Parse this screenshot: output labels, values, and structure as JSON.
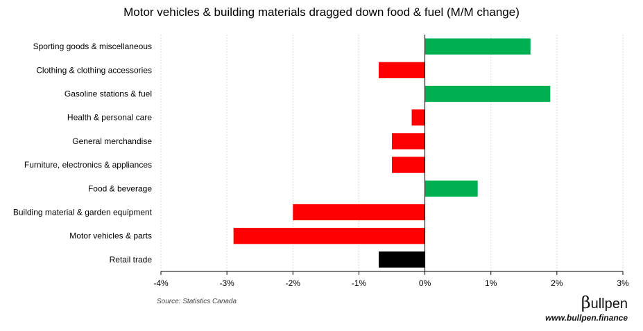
{
  "title": "Motor vehicles & building materials dragged down food & fuel (M/M change)",
  "source": "Source: Statistics Canada",
  "brand": {
    "symbol": "β",
    "name": "ullpen",
    "website": "www.bullpen.finance"
  },
  "colors": {
    "positive": "#00b050",
    "negative": "#ff0000",
    "total": "#000000",
    "grid": "#d9d9d9"
  },
  "chart_data": {
    "type": "bar",
    "orientation": "horizontal",
    "title": "Motor vehicles & building materials dragged down food & fuel (M/M change)",
    "xlabel": "",
    "ylabel": "",
    "xlim": [
      -4,
      3
    ],
    "xticks": [
      -4,
      -3,
      -2,
      -1,
      0,
      1,
      2,
      3
    ],
    "xtick_labels": [
      "-4%",
      "-3%",
      "-2%",
      "-1%",
      "0%",
      "1%",
      "2%",
      "3%"
    ],
    "grid": "vertical dashed",
    "categories": [
      "Sporting goods & miscellaneous",
      "Clothing & clothing accessories",
      "Gasoline stations & fuel",
      "Health & personal care",
      "General merchandise",
      "Furniture, electronics & appliances",
      "Food & beverage",
      "Building material & garden equipment",
      "Motor vehicles & parts",
      "Retail trade"
    ],
    "values": [
      1.6,
      -0.7,
      1.9,
      -0.2,
      -0.5,
      -0.5,
      0.8,
      -2.0,
      -2.9,
      -0.7
    ],
    "unit": "%"
  }
}
